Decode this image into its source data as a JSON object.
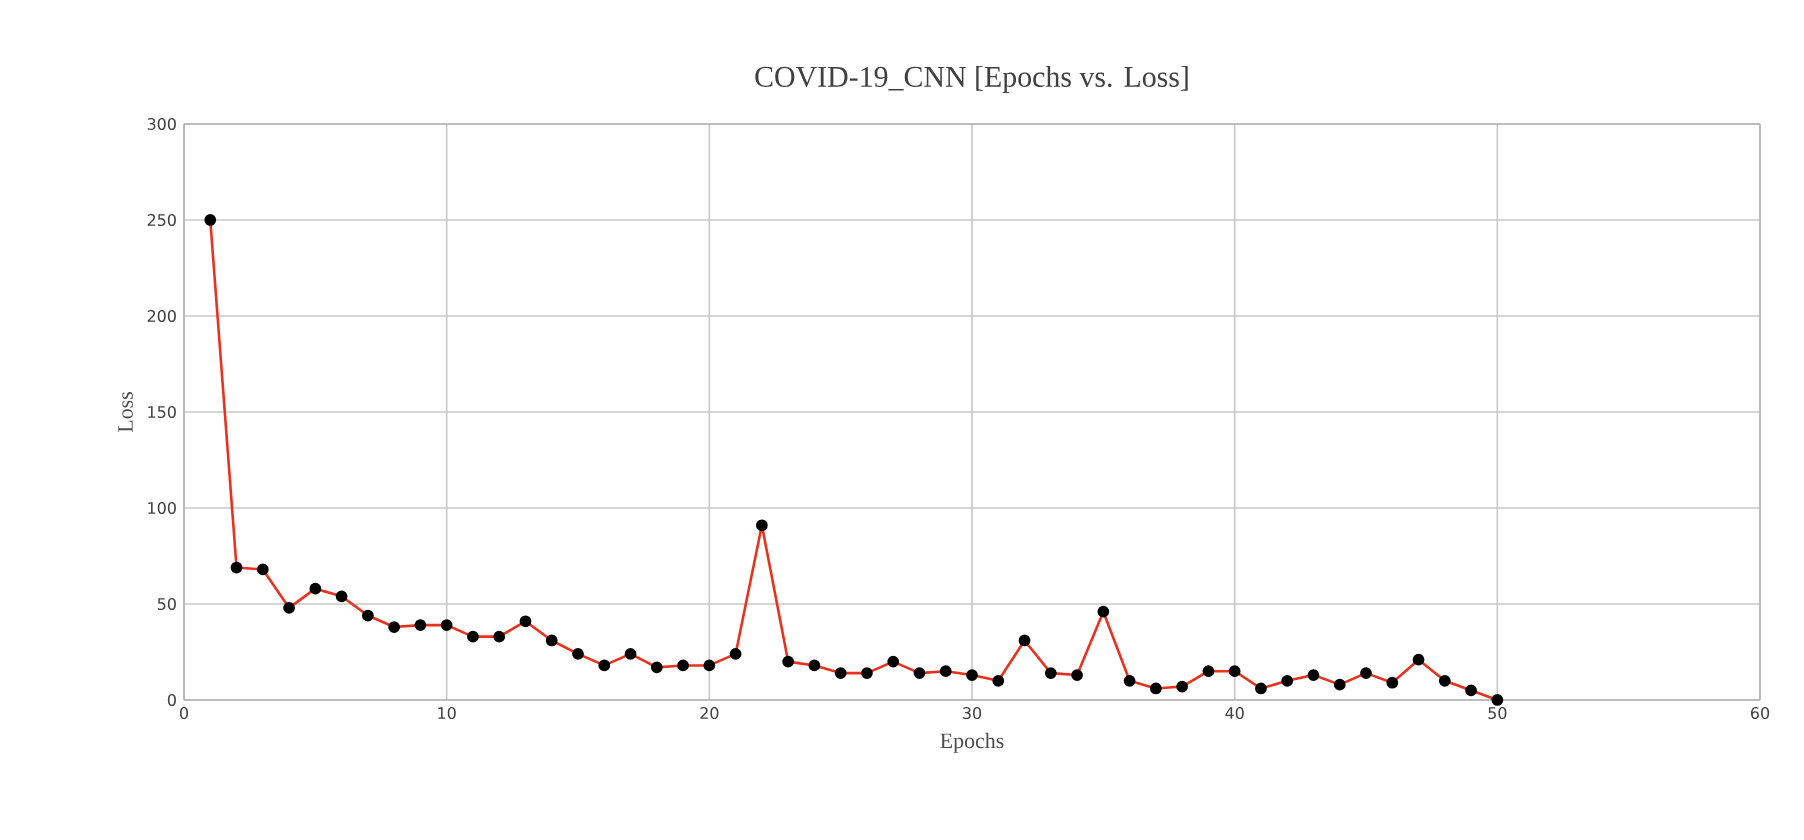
{
  "chart_data": {
    "type": "line",
    "title": "COVID-19_CNN  [Epochs vs. Loss]",
    "xlabel": "Epochs",
    "ylabel": "Loss",
    "x": [
      1,
      2,
      3,
      4,
      5,
      6,
      7,
      8,
      9,
      10,
      11,
      12,
      13,
      14,
      15,
      16,
      17,
      18,
      19,
      20,
      21,
      22,
      23,
      24,
      25,
      26,
      27,
      28,
      29,
      30,
      31,
      32,
      33,
      34,
      35,
      36,
      37,
      38,
      39,
      40,
      41,
      42,
      43,
      44,
      45,
      46,
      47,
      48,
      49,
      50
    ],
    "series": [
      {
        "color": "#e8321e",
        "values": [
          250,
          69,
          68,
          48,
          58,
          54,
          44,
          38,
          39,
          39,
          33,
          33,
          41,
          31,
          24,
          18,
          24,
          17,
          18,
          18,
          24,
          91,
          20,
          18,
          14,
          14,
          20,
          14,
          15,
          13,
          10,
          31,
          14,
          13,
          46,
          10,
          6,
          7,
          15,
          15,
          6,
          10,
          13,
          8,
          14,
          9,
          21,
          10,
          5,
          0
        ]
      }
    ],
    "xlim": [
      0,
      60
    ],
    "ylim": [
      0,
      300
    ],
    "xticks": [
      0,
      10,
      20,
      30,
      40,
      50,
      60
    ],
    "yticks": [
      0,
      50,
      100,
      150,
      200,
      250,
      300
    ],
    "grid": true,
    "marker": "circle",
    "line_style": "solid"
  }
}
